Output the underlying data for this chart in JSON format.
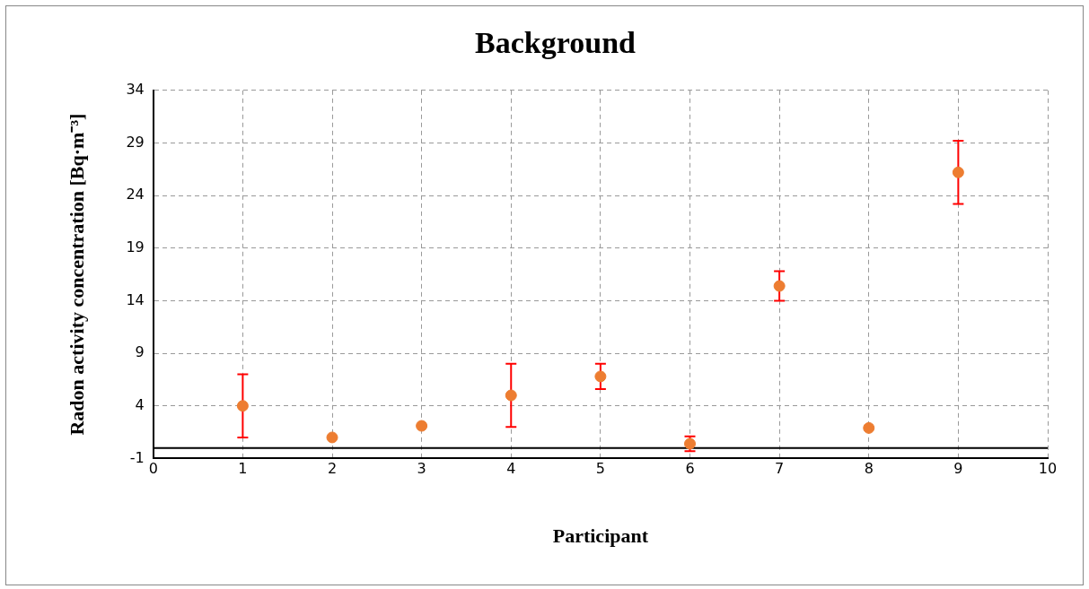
{
  "chart_data": {
    "type": "scatter",
    "title": "Background",
    "xlabel": "Participant",
    "ylabel": "Radon activity concentration [Bq·m⁻³]",
    "x": [
      1,
      2,
      3,
      4,
      5,
      6,
      7,
      8,
      9
    ],
    "series": [
      {
        "color": "#ed7d31",
        "values": [
          4.0,
          1.0,
          2.1,
          5.0,
          6.8,
          0.4,
          15.4,
          1.9,
          26.2
        ],
        "errors": [
          3,
          null,
          null,
          3,
          1.2,
          0.7,
          1.4,
          null,
          3
        ]
      }
    ],
    "xlim": [
      0,
      10
    ],
    "xticks": [
      0,
      1,
      2,
      3,
      4,
      5,
      6,
      7,
      8,
      9,
      10
    ],
    "ylim": [
      -1,
      34
    ],
    "yticks": [
      -1,
      4,
      9,
      14,
      19,
      24,
      29,
      34
    ],
    "grid": true,
    "legend": false,
    "marker": "circle",
    "ref_lines": [
      {
        "axis": "y",
        "value": 0,
        "color": "#000000",
        "line_style": "solid"
      }
    ]
  }
}
